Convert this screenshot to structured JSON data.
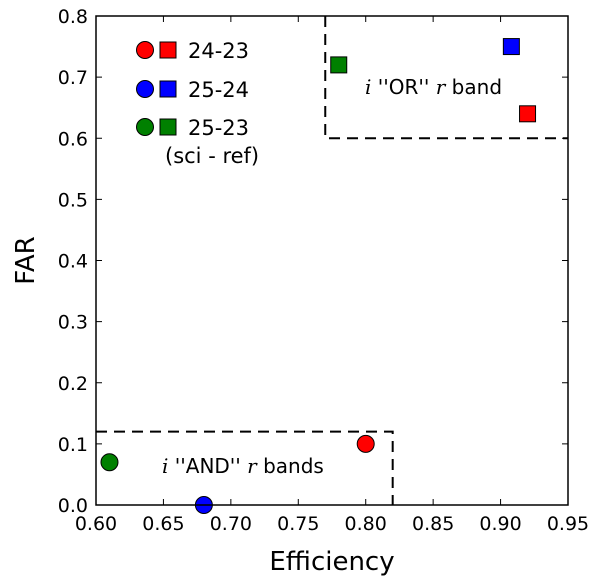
{
  "chart_data": {
    "type": "scatter",
    "xlabel": "Efficiency",
    "ylabel": "FAR",
    "xlim": [
      0.6,
      0.95
    ],
    "ylim": [
      0.0,
      0.8
    ],
    "xticks": [
      "0.60",
      "0.65",
      "0.70",
      "0.75",
      "0.80",
      "0.85",
      "0.90",
      "0.95"
    ],
    "yticks": [
      "0.0",
      "0.1",
      "0.2",
      "0.3",
      "0.4",
      "0.5",
      "0.6",
      "0.7",
      "0.8"
    ],
    "grid": false,
    "legend_position": "top-left",
    "legend_note": "(sci - ref)",
    "series": [
      {
        "name": "24-23",
        "color": "#ff0000",
        "circle": {
          "x": 0.8,
          "y": 0.1
        },
        "square": {
          "x": 0.92,
          "y": 0.64
        }
      },
      {
        "name": "25-24",
        "color": "#0000ff",
        "circle": {
          "x": 0.68,
          "y": 0.0
        },
        "square": {
          "x": 0.908,
          "y": 0.75
        }
      },
      {
        "name": "25-23",
        "color": "#008000",
        "circle": {
          "x": 0.61,
          "y": 0.07
        },
        "square": {
          "x": 0.78,
          "y": 0.72
        }
      }
    ],
    "regions": [
      {
        "label_var1": "i",
        "label_word": " ''OR'' ",
        "label_var2": "r",
        "label_tail": " band",
        "x_range": [
          0.77,
          0.95
        ],
        "y_range": [
          0.6,
          0.8
        ]
      },
      {
        "label_var1": "i",
        "label_word": " ''AND'' ",
        "label_var2": "r",
        "label_tail": " bands",
        "x_range": [
          0.6,
          0.82
        ],
        "y_range": [
          0.0,
          0.12
        ]
      }
    ]
  }
}
